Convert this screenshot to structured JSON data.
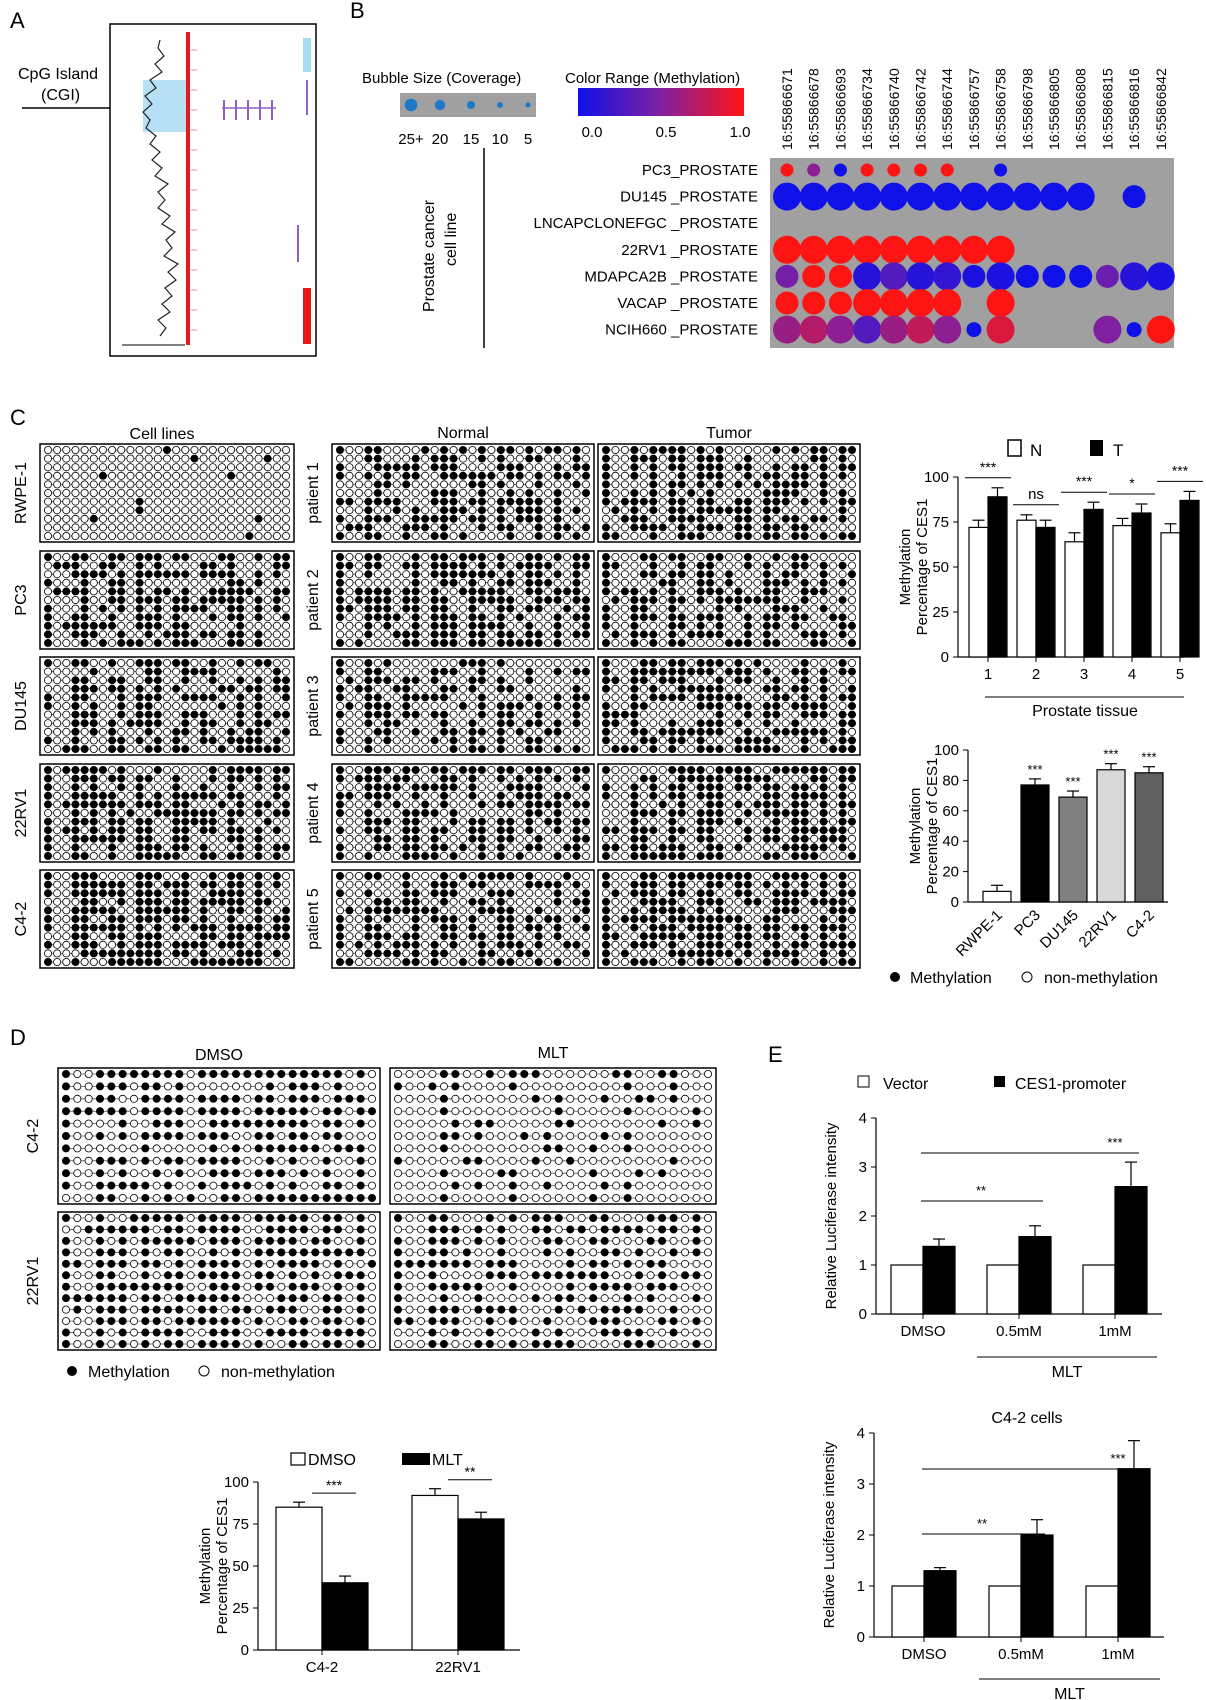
{
  "panels": {
    "A": {
      "label": "A",
      "cgi_label_line1": "CpG Island",
      "cgi_label_line2": "(CGI)"
    },
    "B": {
      "label": "B",
      "bubble_size_title": "Bubble Size (Coverage)",
      "bubble_size_ticks": [
        "25+",
        "20",
        "15",
        "10",
        "5"
      ],
      "color_range_title": "Color Range (Methylation)",
      "color_ticks": [
        "0.0",
        "0.5",
        "1.0"
      ],
      "group_label_line1": "Prostate cancer",
      "group_label_line2": "cell line",
      "colors": {
        "low": "#1010e8",
        "high": "#ff1414",
        "panel_bg": "#a0a0a0"
      }
    },
    "C": {
      "label": "C",
      "titles": {
        "cell_lines": "Cell lines",
        "normal": "Normal",
        "tumor": "Tumor"
      },
      "cell_lines": [
        "RWPE-1",
        "PC3",
        "DU145",
        "22RV1",
        "C4-2"
      ],
      "patients": [
        "patient 1",
        "patient 2",
        "patient 3",
        "patient 4",
        "patient 5"
      ],
      "legend_methylation": "Methylation",
      "legend_non_methylation": "non-methylation"
    },
    "D": {
      "label": "D",
      "titles": {
        "dmso": "DMSO",
        "mlt": "MLT"
      },
      "cell_lines": [
        "C4-2",
        "22RV1"
      ],
      "legend_methylation": "Methylation",
      "legend_non_methylation": "non-methylation"
    },
    "E": {
      "label": "E",
      "legend_vector": "Vector",
      "legend_promoter": "CES1-promoter"
    }
  },
  "chart_data": [
    {
      "id": "B_bubble",
      "type": "scatter",
      "x_labels": [
        "16:55866671",
        "16:55866678",
        "16:55866693",
        "16:55866734",
        "16:55866740",
        "16:55866742",
        "16:55866744",
        "16:55866757",
        "16:55866758",
        "16:55866798",
        "16:55866805",
        "16:55866808",
        "16:55866815",
        "16:55866816",
        "16:55866842"
      ],
      "rows": [
        {
          "label": "PC3_PROSTATE",
          "points": [
            {
              "x": 0,
              "size": 10,
              "meth": 1.0
            },
            {
              "x": 1,
              "size": 10,
              "meth": 0.55
            },
            {
              "x": 2,
              "size": 10,
              "meth": 0.0
            },
            {
              "x": 3,
              "size": 10,
              "meth": 1.0
            },
            {
              "x": 4,
              "size": 10,
              "meth": 1.0
            },
            {
              "x": 5,
              "size": 10,
              "meth": 1.0
            },
            {
              "x": 6,
              "size": 10,
              "meth": 1.0
            },
            {
              "x": 8,
              "size": 10,
              "meth": 0.0
            }
          ]
        },
        {
          "label": "DU145 _PROSTATE",
          "points": [
            {
              "x": 0,
              "size": 25,
              "meth": 0.0
            },
            {
              "x": 1,
              "size": 25,
              "meth": 0.0
            },
            {
              "x": 2,
              "size": 25,
              "meth": 0.0
            },
            {
              "x": 3,
              "size": 25,
              "meth": 0.0
            },
            {
              "x": 4,
              "size": 25,
              "meth": 0.0
            },
            {
              "x": 5,
              "size": 25,
              "meth": 0.0
            },
            {
              "x": 6,
              "size": 25,
              "meth": 0.0
            },
            {
              "x": 7,
              "size": 25,
              "meth": 0.0
            },
            {
              "x": 8,
              "size": 25,
              "meth": 0.0
            },
            {
              "x": 9,
              "size": 25,
              "meth": 0.0
            },
            {
              "x": 10,
              "size": 25,
              "meth": 0.0
            },
            {
              "x": 11,
              "size": 25,
              "meth": 0.0
            },
            {
              "x": 13,
              "size": 20,
              "meth": 0.0
            }
          ]
        },
        {
          "label": "LNCAPCLONEFGC _PROSTATE",
          "points": []
        },
        {
          "label": "22RV1 _PROSTATE",
          "points": [
            {
              "x": 0,
              "size": 25,
              "meth": 1.0
            },
            {
              "x": 1,
              "size": 25,
              "meth": 1.0
            },
            {
              "x": 2,
              "size": 25,
              "meth": 1.0
            },
            {
              "x": 3,
              "size": 25,
              "meth": 1.0
            },
            {
              "x": 4,
              "size": 25,
              "meth": 1.0
            },
            {
              "x": 5,
              "size": 25,
              "meth": 1.0
            },
            {
              "x": 6,
              "size": 25,
              "meth": 1.0
            },
            {
              "x": 7,
              "size": 25,
              "meth": 1.0
            },
            {
              "x": 8,
              "size": 25,
              "meth": 1.0
            }
          ]
        },
        {
          "label": "MDAPCA2B _PROSTATE",
          "points": [
            {
              "x": 0,
              "size": 20,
              "meth": 0.45
            },
            {
              "x": 1,
              "size": 20,
              "meth": 1.0
            },
            {
              "x": 2,
              "size": 20,
              "meth": 1.0
            },
            {
              "x": 3,
              "size": 25,
              "meth": 0.1
            },
            {
              "x": 4,
              "size": 25,
              "meth": 0.3
            },
            {
              "x": 5,
              "size": 25,
              "meth": 0.1
            },
            {
              "x": 6,
              "size": 25,
              "meth": 0.15
            },
            {
              "x": 7,
              "size": 20,
              "meth": 0.05
            },
            {
              "x": 8,
              "size": 25,
              "meth": 0.05
            },
            {
              "x": 9,
              "size": 20,
              "meth": 0.0
            },
            {
              "x": 10,
              "size": 20,
              "meth": 0.0
            },
            {
              "x": 11,
              "size": 20,
              "meth": 0.0
            },
            {
              "x": 12,
              "size": 20,
              "meth": 0.4
            },
            {
              "x": 13,
              "size": 25,
              "meth": 0.1
            },
            {
              "x": 14,
              "size": 25,
              "meth": 0.05
            }
          ]
        },
        {
          "label": "VACAP _PROSTATE",
          "points": [
            {
              "x": 0,
              "size": 20,
              "meth": 1.0
            },
            {
              "x": 1,
              "size": 20,
              "meth": 1.0
            },
            {
              "x": 2,
              "size": 20,
              "meth": 1.0
            },
            {
              "x": 3,
              "size": 25,
              "meth": 1.0
            },
            {
              "x": 4,
              "size": 25,
              "meth": 1.0
            },
            {
              "x": 5,
              "size": 25,
              "meth": 1.0
            },
            {
              "x": 6,
              "size": 25,
              "meth": 1.0
            },
            {
              "x": 8,
              "size": 25,
              "meth": 1.0
            }
          ]
        },
        {
          "label": "NCIH660 _PROSTATE",
          "points": [
            {
              "x": 0,
              "size": 25,
              "meth": 0.6
            },
            {
              "x": 1,
              "size": 25,
              "meth": 0.7
            },
            {
              "x": 2,
              "size": 25,
              "meth": 0.55
            },
            {
              "x": 3,
              "size": 25,
              "meth": 0.3
            },
            {
              "x": 4,
              "size": 25,
              "meth": 0.6
            },
            {
              "x": 5,
              "size": 25,
              "meth": 0.75
            },
            {
              "x": 6,
              "size": 25,
              "meth": 0.55
            },
            {
              "x": 7,
              "size": 12,
              "meth": 0.0
            },
            {
              "x": 8,
              "size": 25,
              "meth": 0.85
            },
            {
              "x": 12,
              "size": 25,
              "meth": 0.5
            },
            {
              "x": 13,
              "size": 12,
              "meth": 0.0
            },
            {
              "x": 14,
              "size": 25,
              "meth": 1.0
            }
          ]
        }
      ]
    },
    {
      "id": "C_tissue",
      "type": "bar",
      "categories": [
        "1",
        "2",
        "3",
        "4",
        "5"
      ],
      "series": [
        {
          "name": "N",
          "values": [
            72,
            76,
            64,
            73,
            69
          ],
          "errors": [
            4,
            3,
            5,
            4,
            5
          ]
        },
        {
          "name": "T",
          "values": [
            89,
            72,
            82,
            80,
            87
          ],
          "errors": [
            5,
            4,
            4,
            5,
            5
          ]
        }
      ],
      "significance": [
        "***",
        "ns",
        "***",
        "*",
        "***"
      ],
      "xlabel": "Prostate tissue",
      "ylabel": "Methylation Percentage of CES1",
      "ylim": [
        0,
        100
      ],
      "yticks": [
        0,
        25,
        50,
        75,
        100
      ]
    },
    {
      "id": "C_celllines",
      "type": "bar",
      "categories": [
        "RWPE-1",
        "PC3",
        "DU145",
        "22RV1",
        "C4-2"
      ],
      "values": [
        7,
        77,
        69,
        87,
        85
      ],
      "errors": [
        4,
        4,
        4,
        4,
        4
      ],
      "colors": [
        "#ffffff",
        "#000000",
        "#808080",
        "#d8d8d8",
        "#606060"
      ],
      "significance": [
        "",
        "***",
        "***",
        "***",
        "***"
      ],
      "ylabel": "Methylation Percentage of CES1",
      "ylim": [
        0,
        100
      ],
      "yticks": [
        0,
        20,
        40,
        60,
        80,
        100
      ]
    },
    {
      "id": "D_bar",
      "type": "bar",
      "categories": [
        "C4-2",
        "22RV1"
      ],
      "series": [
        {
          "name": "DMSO",
          "values": [
            85,
            92
          ],
          "errors": [
            3,
            4
          ]
        },
        {
          "name": "MLT",
          "values": [
            40,
            78
          ],
          "errors": [
            4,
            4
          ]
        }
      ],
      "significance": [
        "***",
        "**"
      ],
      "ylabel": "Methylation Percentage of CES1",
      "ylim": [
        0,
        100
      ],
      "yticks": [
        0,
        25,
        50,
        75,
        100
      ]
    },
    {
      "id": "E_top",
      "type": "bar",
      "categories": [
        "DMSO",
        "0.5mM",
        "1mM"
      ],
      "series": [
        {
          "name": "Vector",
          "values": [
            1,
            1,
            1
          ],
          "errors": [
            0,
            0,
            0
          ]
        },
        {
          "name": "CES1-promoter",
          "values": [
            1.38,
            1.58,
            2.6
          ],
          "errors": [
            0.15,
            0.22,
            0.5
          ]
        }
      ],
      "significance_labels": [
        "**",
        "***"
      ],
      "group_label": "MLT",
      "ylabel": "Relative Luciferase intensity",
      "ylim": [
        0,
        4
      ],
      "yticks": [
        0,
        1,
        2,
        3,
        4
      ]
    },
    {
      "id": "E_bottom",
      "type": "bar",
      "title": "C4-2 cells",
      "categories": [
        "DMSO",
        "0.5mM",
        "1mM"
      ],
      "series": [
        {
          "name": "Vector",
          "values": [
            1,
            1,
            1
          ],
          "errors": [
            0,
            0,
            0
          ]
        },
        {
          "name": "CES1-promoter",
          "values": [
            1.3,
            2.0,
            3.3
          ],
          "errors": [
            0.06,
            0.3,
            0.55
          ]
        }
      ],
      "significance_labels": [
        "**",
        "***"
      ],
      "group_label": "MLT",
      "ylabel": "Relative Luciferase intensity",
      "ylim": [
        0,
        4
      ],
      "yticks": [
        0,
        1,
        2,
        3,
        4
      ]
    }
  ]
}
